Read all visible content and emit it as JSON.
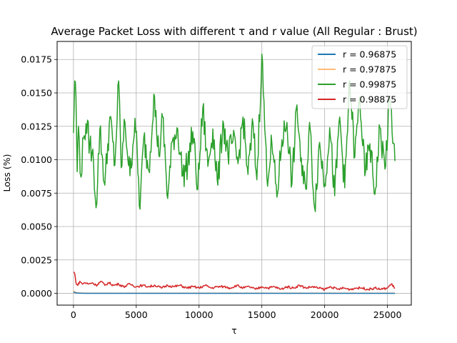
{
  "chart_data": {
    "type": "line",
    "title": "Average Packet Loss with different τ and r value (All Regular : Brust)",
    "xlabel": "τ",
    "ylabel": "Loss (%)",
    "xlim": [
      -1300,
      26900
    ],
    "ylim": [
      -0.00088,
      0.01885
    ],
    "xticks": [
      0,
      5000,
      10000,
      15000,
      20000,
      25000
    ],
    "xtick_labels": [
      "0",
      "5000",
      "10000",
      "15000",
      "20000",
      "25000"
    ],
    "yticks": [
      0,
      0.0025,
      0.005,
      0.0075,
      0.01,
      0.0125,
      0.015,
      0.0175
    ],
    "ytick_labels": [
      "0.0000",
      "0.0025",
      "0.0050",
      "0.0075",
      "0.0100",
      "0.0125",
      "0.0150",
      "0.0175"
    ],
    "grid": true,
    "legend": "top-right",
    "x_range": [
      0,
      25600
    ],
    "series": [
      {
        "name": "r = 0.96875",
        "color": "#1f77b4",
        "x": [
          0,
          100,
          300,
          600,
          1000,
          2000,
          5000,
          10000,
          15000,
          20000,
          25600
        ],
        "y": [
          0.00012,
          6e-05,
          2e-05,
          1e-05,
          0.0,
          0.0,
          0.0,
          0.0,
          0.0,
          0.0,
          0.0
        ]
      },
      {
        "name": "r = 0.97875",
        "color": "#ffbb78",
        "x": [
          0,
          100,
          300,
          600,
          1000,
          2000,
          5000,
          10000,
          15000,
          20000,
          25600
        ],
        "y": [
          0.0002,
          0.0001,
          5e-05,
          3e-05,
          2e-05,
          2e-05,
          2e-05,
          2e-05,
          2e-05,
          2e-05,
          2e-05
        ]
      },
      {
        "name": "r = 0.99875",
        "color": "#2ca02c",
        "x": [
          0,
          100,
          200,
          300,
          400,
          600,
          800,
          1000,
          1300,
          1600,
          1800,
          2100,
          2500,
          2900,
          3300,
          3600,
          3800,
          4100,
          4500,
          4900,
          5300,
          5600,
          6000,
          6400,
          6800,
          7100,
          7500,
          7900,
          8300,
          8700,
          9100,
          9500,
          9900,
          10300,
          10700,
          11100,
          11500,
          11900,
          12300,
          12700,
          13100,
          13500,
          13900,
          14300,
          14600,
          15000,
          15400,
          15800,
          16200,
          16600,
          17000,
          17400,
          17800,
          18200,
          18500,
          18800,
          19200,
          19600,
          20000,
          20400,
          20800,
          21200,
          21600,
          22000,
          22400,
          22800,
          23200,
          23600,
          24000,
          24400,
          24800,
          25200,
          25600
        ],
        "y": [
          0.012,
          0.0159,
          0.0147,
          0.0091,
          0.0125,
          0.0087,
          0.0116,
          0.0127,
          0.0112,
          0.0098,
          0.0064,
          0.0123,
          0.0081,
          0.0132,
          0.0096,
          0.0159,
          0.0094,
          0.0128,
          0.0088,
          0.0131,
          0.0063,
          0.0117,
          0.0092,
          0.0149,
          0.0103,
          0.0132,
          0.0071,
          0.0115,
          0.0123,
          0.0088,
          0.0097,
          0.0121,
          0.0078,
          0.0139,
          0.0095,
          0.0123,
          0.0081,
          0.0129,
          0.0104,
          0.0114,
          0.0097,
          0.0132,
          0.0089,
          0.0127,
          0.0085,
          0.0179,
          0.0087,
          0.0112,
          0.0072,
          0.0115,
          0.0128,
          0.0082,
          0.0141,
          0.0088,
          0.0078,
          0.0128,
          0.0064,
          0.0113,
          0.0082,
          0.0124,
          0.0073,
          0.0132,
          0.0079,
          0.0159,
          0.0102,
          0.0147,
          0.0088,
          0.0112,
          0.0074,
          0.0124,
          0.0093,
          0.0146,
          0.0099
        ]
      },
      {
        "name": "r = 0.98875",
        "color": "#d62728",
        "x": [
          0,
          100,
          200,
          350,
          500,
          700,
          900,
          1200,
          1500,
          1800,
          2200,
          2500,
          2800,
          3200,
          3600,
          4000,
          4500,
          5000,
          5500,
          6000,
          6500,
          7000,
          7500,
          8000,
          8500,
          9000,
          9500,
          10000,
          10500,
          11000,
          11500,
          12000,
          12500,
          13000,
          13500,
          14000,
          14500,
          15000,
          15500,
          16000,
          16500,
          17000,
          17500,
          18000,
          18500,
          19000,
          19500,
          20000,
          20500,
          21000,
          21500,
          22000,
          22500,
          23000,
          23500,
          24000,
          24500,
          25000,
          25300,
          25600
        ],
        "y": [
          0.0016,
          0.0015,
          0.0008,
          0.0006,
          0.0009,
          0.0007,
          0.0008,
          0.0007,
          0.0008,
          0.0006,
          0.0009,
          0.0006,
          0.0008,
          0.0006,
          0.0007,
          0.0005,
          0.0007,
          0.0005,
          0.0006,
          0.0005,
          0.0006,
          0.0004,
          0.0006,
          0.0005,
          0.0006,
          0.0004,
          0.0005,
          0.0004,
          0.0006,
          0.0004,
          0.0005,
          0.0005,
          0.0004,
          0.0006,
          0.0004,
          0.0005,
          0.0003,
          0.0005,
          0.0004,
          0.0005,
          0.0003,
          0.0005,
          0.0004,
          0.0006,
          0.0004,
          0.0005,
          0.0004,
          0.0003,
          0.0005,
          0.0003,
          0.0004,
          0.0003,
          0.0004,
          0.0004,
          0.0003,
          0.0004,
          0.0003,
          0.0004,
          0.0007,
          0.0004
        ]
      }
    ]
  }
}
